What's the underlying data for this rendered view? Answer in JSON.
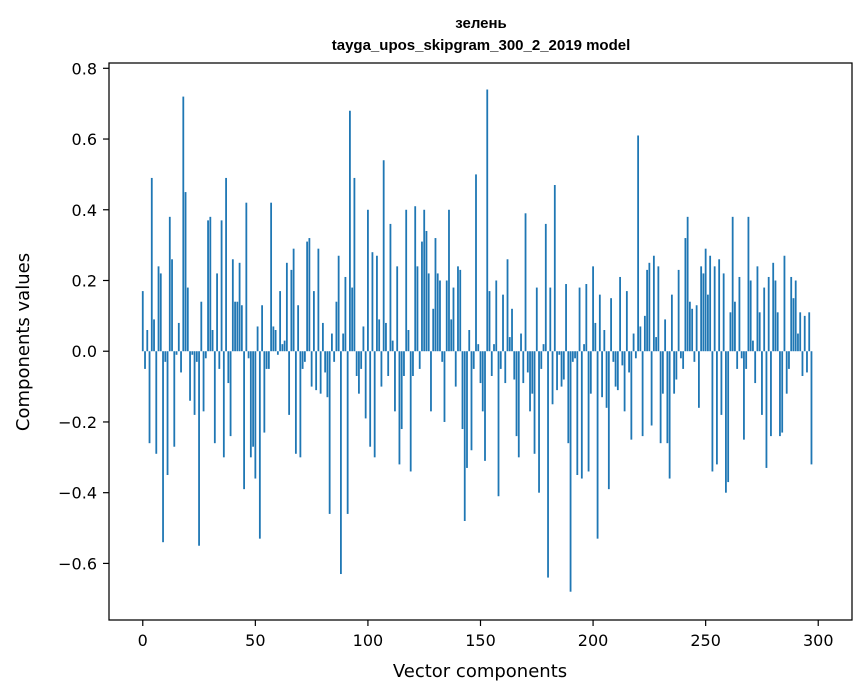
{
  "chart_data": {
    "type": "bar",
    "title": "зелень",
    "subtitle": "tayga_upos_skipgram_300_2_2019 model",
    "xlabel": "Vector components",
    "ylabel": "Components values",
    "xlim": [
      -15,
      315
    ],
    "ylim": [
      -0.76,
      0.815
    ],
    "xticks": [
      0,
      50,
      100,
      150,
      200,
      250,
      300
    ],
    "xtick_labels": [
      "0",
      "50",
      "100",
      "150",
      "200",
      "250",
      "300"
    ],
    "yticks": [
      -0.6,
      -0.4,
      -0.2,
      0.0,
      0.2,
      0.4,
      0.6,
      0.8
    ],
    "ytick_labels": [
      "−0.6",
      "−0.4",
      "−0.2",
      "0.0",
      "0.2",
      "0.4",
      "0.6",
      "0.8"
    ],
    "grid": false,
    "bar_color": "#1f77b4",
    "values": [
      0.17,
      -0.05,
      0.06,
      -0.26,
      0.49,
      0.09,
      -0.29,
      0.24,
      0.22,
      -0.54,
      -0.03,
      -0.35,
      0.38,
      0.26,
      -0.27,
      -0.01,
      0.08,
      -0.06,
      0.72,
      0.45,
      0.18,
      -0.14,
      -0.01,
      -0.18,
      -0.03,
      -0.55,
      0.14,
      -0.17,
      -0.02,
      0.37,
      0.38,
      0.06,
      -0.26,
      0.22,
      -0.05,
      0.37,
      -0.3,
      0.49,
      -0.09,
      -0.24,
      0.26,
      0.14,
      0.14,
      0.25,
      0.13,
      -0.39,
      0.42,
      -0.02,
      -0.3,
      -0.27,
      -0.36,
      0.07,
      -0.53,
      0.13,
      -0.23,
      -0.05,
      -0.05,
      0.42,
      0.07,
      0.06,
      -0.01,
      0.17,
      0.02,
      0.03,
      0.25,
      -0.18,
      0.23,
      0.29,
      -0.29,
      0.13,
      -0.3,
      -0.05,
      -0.03,
      0.31,
      0.32,
      -0.1,
      0.17,
      -0.11,
      0.29,
      -0.12,
      0.08,
      -0.06,
      -0.13,
      -0.46,
      0.05,
      -0.03,
      0.14,
      0.27,
      -0.63,
      0.05,
      0.21,
      -0.46,
      0.68,
      0.18,
      0.49,
      -0.07,
      -0.12,
      -0.05,
      0.07,
      -0.19,
      0.4,
      -0.27,
      0.28,
      -0.3,
      0.27,
      0.09,
      -0.1,
      0.54,
      0.08,
      -0.07,
      0.36,
      0.03,
      -0.17,
      0.24,
      -0.32,
      -0.22,
      -0.07,
      0.4,
      0.06,
      -0.34,
      -0.07,
      0.41,
      0.24,
      -0.05,
      0.31,
      0.4,
      0.34,
      0.22,
      -0.17,
      0.12,
      0.32,
      0.22,
      0.2,
      -0.03,
      -0.2,
      0.2,
      0.4,
      0.09,
      0.18,
      -0.1,
      0.24,
      0.23,
      -0.22,
      -0.48,
      -0.33,
      0.06,
      -0.28,
      -0.05,
      0.5,
      0.02,
      -0.09,
      -0.17,
      -0.31,
      0.74,
      0.17,
      -0.07,
      0.02,
      0.2,
      -0.41,
      -0.05,
      0.16,
      -0.09,
      0.26,
      0.04,
      0.12,
      -0.08,
      -0.24,
      -0.3,
      0.05,
      -0.09,
      0.39,
      -0.06,
      -0.17,
      -0.12,
      -0.29,
      0.18,
      -0.4,
      -0.05,
      0.02,
      0.36,
      -0.64,
      0.18,
      -0.15,
      0.47,
      -0.11,
      -0.01,
      -0.1,
      -0.08,
      0.19,
      -0.26,
      -0.68,
      -0.03,
      -0.02,
      -0.35,
      0.18,
      -0.36,
      0.02,
      0.19,
      -0.34,
      -0.12,
      0.24,
      0.08,
      -0.53,
      0.16,
      -0.13,
      0.06,
      -0.16,
      -0.39,
      0.15,
      -0.03,
      -0.1,
      -0.11,
      0.21,
      -0.04,
      -0.17,
      0.17,
      -0.06,
      -0.25,
      0.05,
      -0.02,
      0.61,
      0.07,
      -0.24,
      0.1,
      0.23,
      0.25,
      -0.21,
      0.27,
      0.04,
      0.24,
      -0.26,
      -0.12,
      0.09,
      -0.26,
      -0.36,
      0.16,
      -0.12,
      -0.08,
      0.23,
      -0.02,
      -0.05,
      0.32,
      0.38,
      0.14,
      0.12,
      -0.03,
      0.13,
      -0.16,
      0.24,
      0.22,
      0.29,
      0.16,
      0.27,
      -0.34,
      0.24,
      -0.32,
      0.26,
      -0.18,
      0.22,
      -0.4,
      -0.37,
      0.11,
      0.38,
      0.14,
      -0.05,
      0.21,
      -0.02,
      -0.25,
      -0.05,
      0.38,
      0.2,
      0.03,
      -0.09,
      0.24,
      0.11,
      -0.18,
      0.18,
      -0.33,
      0.21,
      -0.24,
      0.25,
      0.2,
      0.11,
      -0.24,
      -0.23,
      0.27,
      -0.12,
      -0.05,
      0.21,
      0.15,
      0.2,
      0.05,
      0.11,
      -0.07,
      0.1,
      -0.06,
      0.11,
      -0.32
    ]
  }
}
